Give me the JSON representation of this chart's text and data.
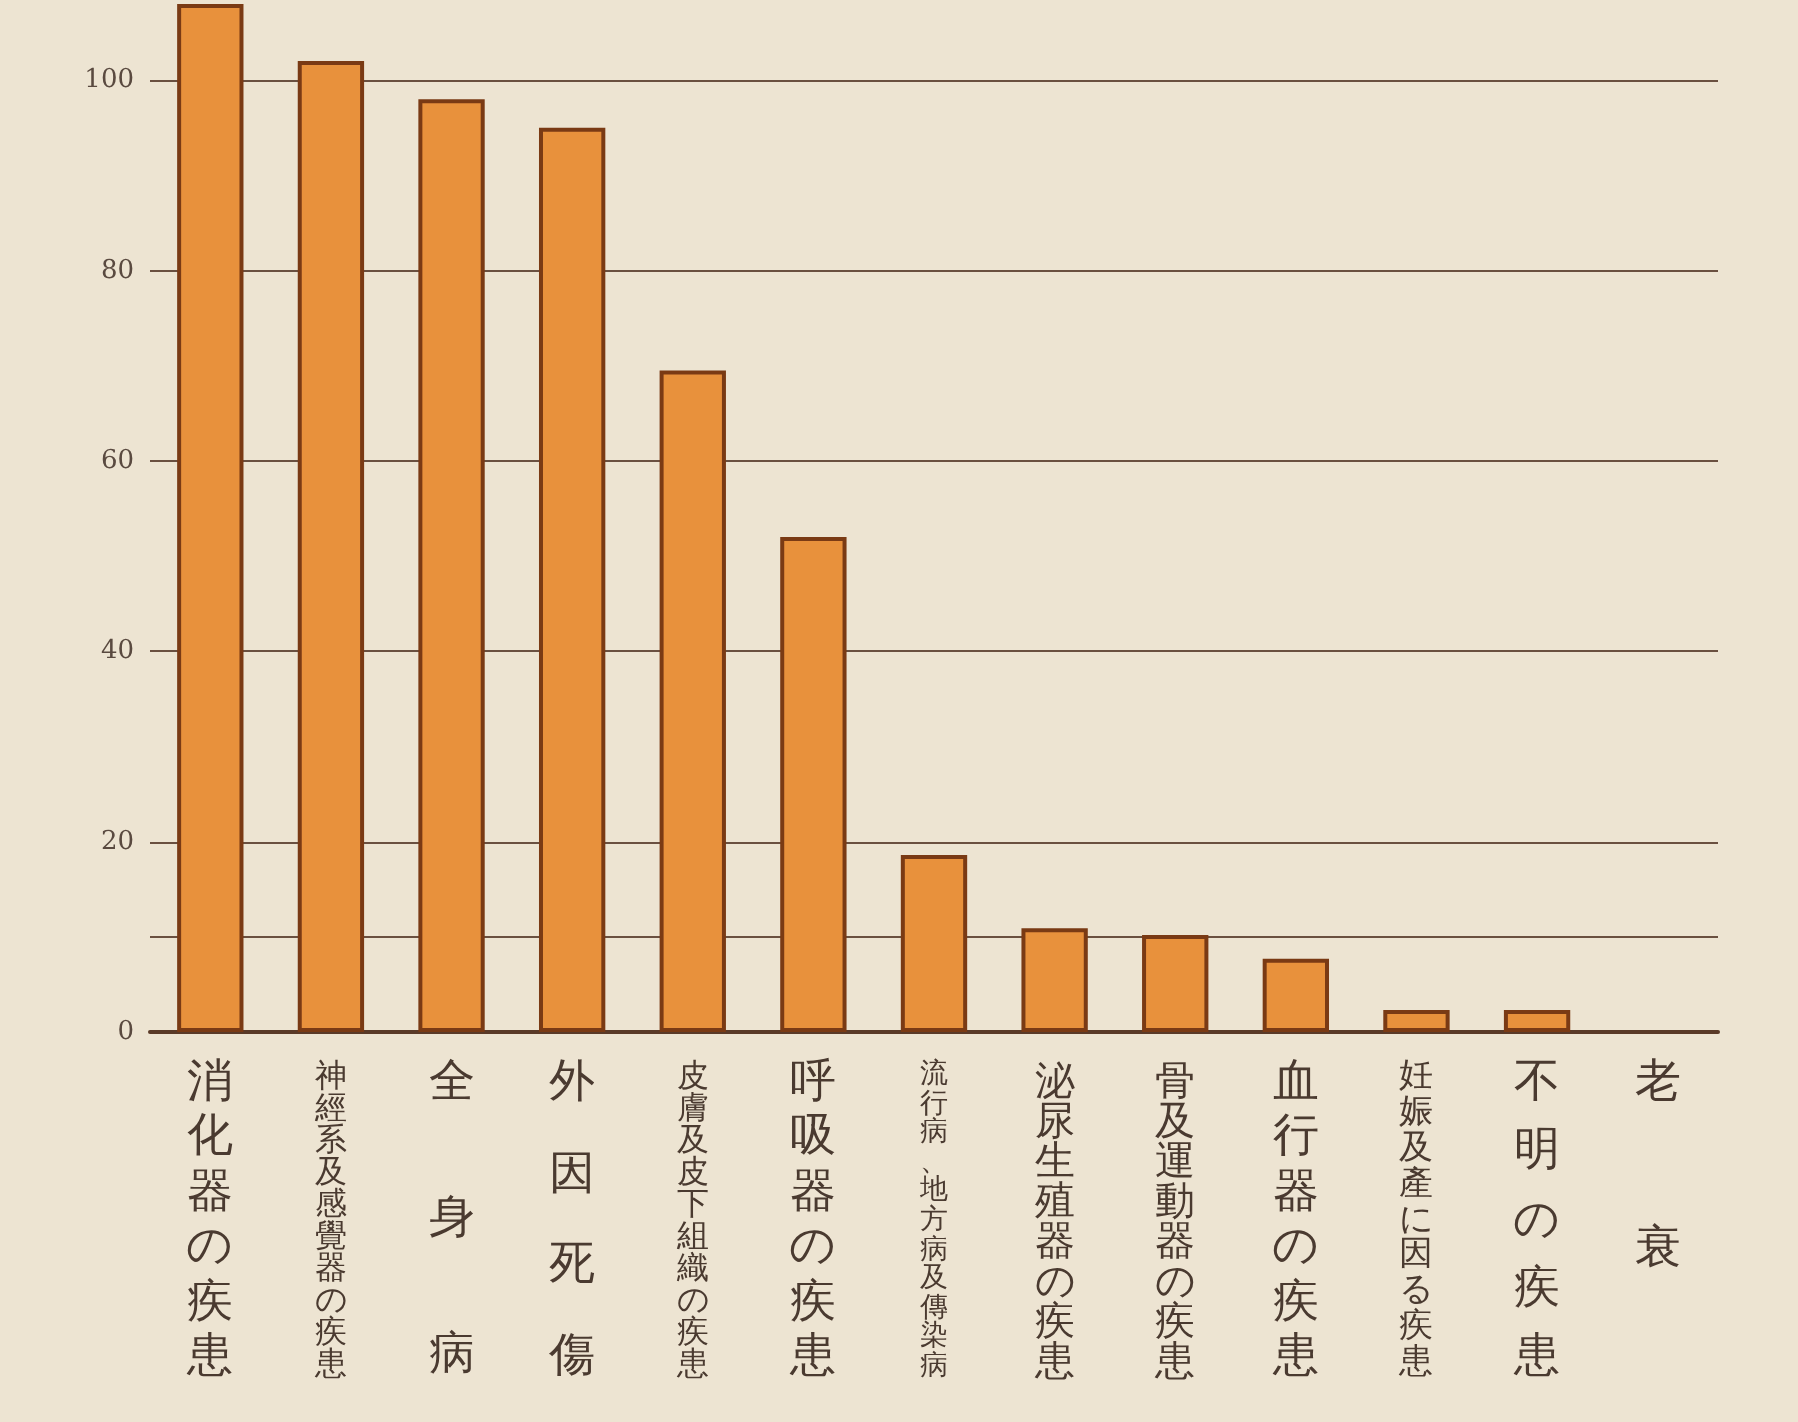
{
  "chart_data": {
    "type": "bar",
    "categories": [
      "消化器の疾患",
      "神經系及感覺器の疾患",
      "全身病",
      "外因死傷",
      "皮膚及皮下組織の疾患",
      "呼吸器の疾患",
      "流行病、地方病及傳染病",
      "泌尿生殖器の疾患",
      "骨及運動器の疾患",
      "血行器の疾患",
      "妊娠及產に因る疾患",
      "不明の疾患",
      "老衰"
    ],
    "values": [
      108,
      102,
      98,
      95,
      69.5,
      52,
      18.6,
      10.9,
      10.2,
      7.7,
      2.3,
      2.3,
      null
    ],
    "color": "#e8913c",
    "ylim": [
      0,
      108
    ],
    "yticks": [
      0,
      {
        "value": 10,
        "label": null
      },
      20,
      40,
      60,
      80,
      100
    ],
    "grid": "y"
  }
}
